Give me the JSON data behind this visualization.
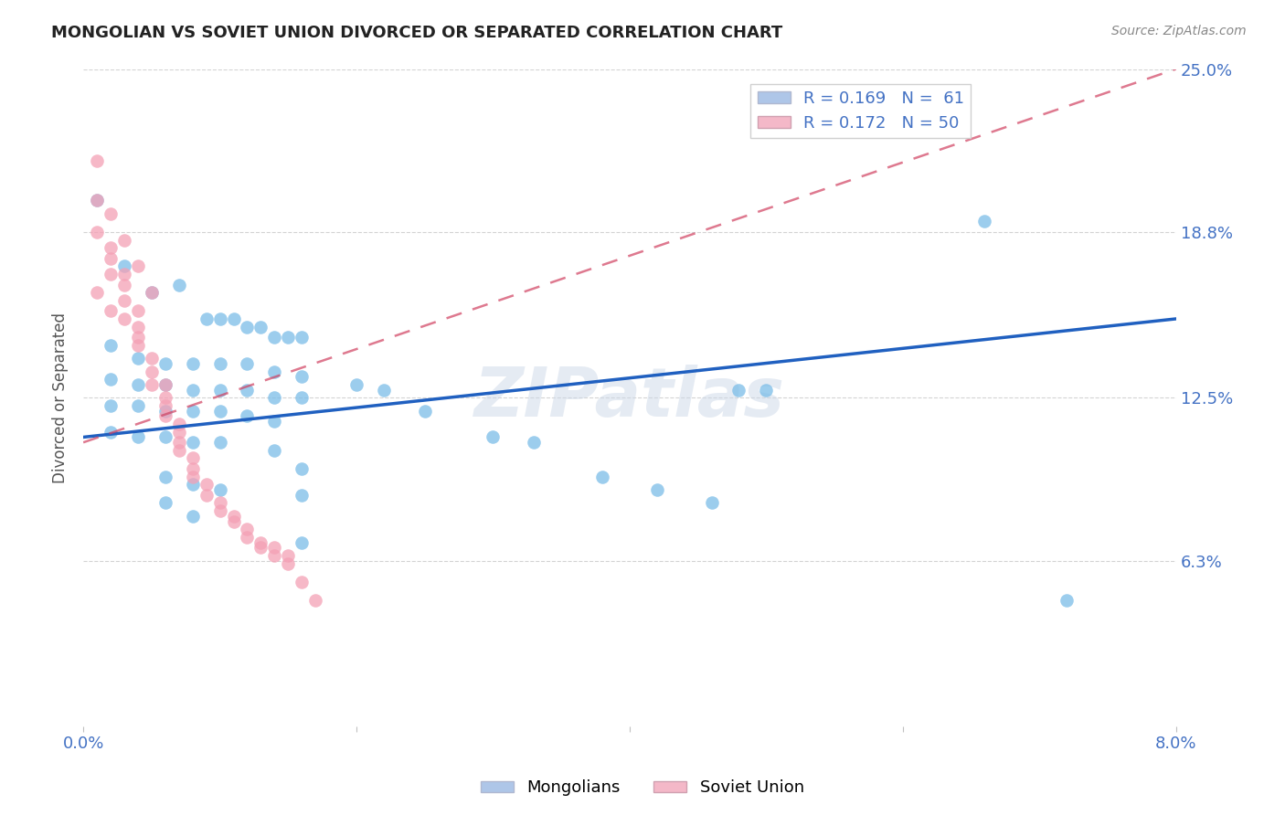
{
  "title": "MONGOLIAN VS SOVIET UNION DIVORCED OR SEPARATED CORRELATION CHART",
  "source": "Source: ZipAtlas.com",
  "ylabel_label": "Divorced or Separated",
  "x_min": 0.0,
  "x_max": 0.08,
  "y_min": 0.0,
  "y_max": 0.25,
  "x_ticks": [
    0.0,
    0.02,
    0.04,
    0.06,
    0.08
  ],
  "x_tick_labels": [
    "0.0%",
    "",
    "",
    "",
    "8.0%"
  ],
  "y_tick_labels": [
    "6.3%",
    "12.5%",
    "18.8%",
    "25.0%"
  ],
  "y_ticks": [
    0.063,
    0.125,
    0.188,
    0.25
  ],
  "mongolian_color": "#7bbde8",
  "soviet_color": "#f4a0b5",
  "mongolian_line_color": "#2060c0",
  "soviet_line_color": "#d04060",
  "watermark": "ZIPatlas",
  "mongolian_points": [
    [
      0.001,
      0.2
    ],
    [
      0.003,
      0.175
    ],
    [
      0.005,
      0.165
    ],
    [
      0.007,
      0.168
    ],
    [
      0.009,
      0.155
    ],
    [
      0.01,
      0.155
    ],
    [
      0.011,
      0.155
    ],
    [
      0.012,
      0.152
    ],
    [
      0.013,
      0.152
    ],
    [
      0.014,
      0.148
    ],
    [
      0.015,
      0.148
    ],
    [
      0.016,
      0.148
    ],
    [
      0.002,
      0.145
    ],
    [
      0.004,
      0.14
    ],
    [
      0.006,
      0.138
    ],
    [
      0.008,
      0.138
    ],
    [
      0.01,
      0.138
    ],
    [
      0.012,
      0.138
    ],
    [
      0.014,
      0.135
    ],
    [
      0.016,
      0.133
    ],
    [
      0.002,
      0.132
    ],
    [
      0.004,
      0.13
    ],
    [
      0.006,
      0.13
    ],
    [
      0.008,
      0.128
    ],
    [
      0.01,
      0.128
    ],
    [
      0.012,
      0.128
    ],
    [
      0.014,
      0.125
    ],
    [
      0.016,
      0.125
    ],
    [
      0.002,
      0.122
    ],
    [
      0.004,
      0.122
    ],
    [
      0.006,
      0.12
    ],
    [
      0.008,
      0.12
    ],
    [
      0.01,
      0.12
    ],
    [
      0.012,
      0.118
    ],
    [
      0.014,
      0.116
    ],
    [
      0.002,
      0.112
    ],
    [
      0.004,
      0.11
    ],
    [
      0.006,
      0.11
    ],
    [
      0.008,
      0.108
    ],
    [
      0.01,
      0.108
    ],
    [
      0.014,
      0.105
    ],
    [
      0.016,
      0.098
    ],
    [
      0.006,
      0.095
    ],
    [
      0.008,
      0.092
    ],
    [
      0.01,
      0.09
    ],
    [
      0.016,
      0.088
    ],
    [
      0.006,
      0.085
    ],
    [
      0.008,
      0.08
    ],
    [
      0.016,
      0.07
    ],
    [
      0.02,
      0.13
    ],
    [
      0.022,
      0.128
    ],
    [
      0.025,
      0.12
    ],
    [
      0.03,
      0.11
    ],
    [
      0.033,
      0.108
    ],
    [
      0.038,
      0.095
    ],
    [
      0.042,
      0.09
    ],
    [
      0.046,
      0.085
    ],
    [
      0.048,
      0.128
    ],
    [
      0.05,
      0.128
    ],
    [
      0.066,
      0.192
    ],
    [
      0.072,
      0.048
    ]
  ],
  "soviet_points": [
    [
      0.001,
      0.215
    ],
    [
      0.001,
      0.2
    ],
    [
      0.002,
      0.195
    ],
    [
      0.002,
      0.182
    ],
    [
      0.002,
      0.178
    ],
    [
      0.003,
      0.172
    ],
    [
      0.003,
      0.168
    ],
    [
      0.003,
      0.162
    ],
    [
      0.004,
      0.158
    ],
    [
      0.004,
      0.152
    ],
    [
      0.004,
      0.148
    ],
    [
      0.001,
      0.165
    ],
    [
      0.002,
      0.158
    ],
    [
      0.003,
      0.155
    ],
    [
      0.004,
      0.145
    ],
    [
      0.005,
      0.14
    ],
    [
      0.005,
      0.135
    ],
    [
      0.005,
      0.13
    ],
    [
      0.006,
      0.13
    ],
    [
      0.006,
      0.125
    ],
    [
      0.006,
      0.122
    ],
    [
      0.006,
      0.118
    ],
    [
      0.007,
      0.115
    ],
    [
      0.007,
      0.112
    ],
    [
      0.007,
      0.108
    ],
    [
      0.007,
      0.105
    ],
    [
      0.008,
      0.102
    ],
    [
      0.008,
      0.098
    ],
    [
      0.008,
      0.095
    ],
    [
      0.009,
      0.092
    ],
    [
      0.009,
      0.088
    ],
    [
      0.01,
      0.085
    ],
    [
      0.01,
      0.082
    ],
    [
      0.011,
      0.08
    ],
    [
      0.011,
      0.078
    ],
    [
      0.012,
      0.075
    ],
    [
      0.012,
      0.072
    ],
    [
      0.013,
      0.07
    ],
    [
      0.013,
      0.068
    ],
    [
      0.014,
      0.068
    ],
    [
      0.014,
      0.065
    ],
    [
      0.015,
      0.065
    ],
    [
      0.015,
      0.062
    ],
    [
      0.016,
      0.055
    ],
    [
      0.017,
      0.048
    ],
    [
      0.003,
      0.185
    ],
    [
      0.004,
      0.175
    ],
    [
      0.005,
      0.165
    ],
    [
      0.002,
      0.172
    ],
    [
      0.001,
      0.188
    ]
  ]
}
